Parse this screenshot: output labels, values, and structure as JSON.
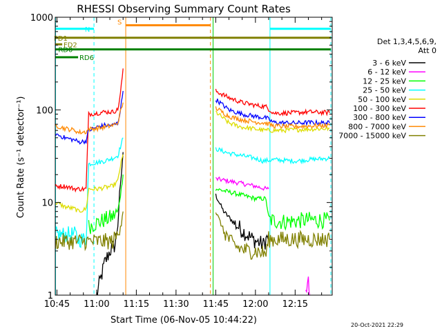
{
  "chart_data": {
    "type": "line",
    "title": "RHESSI Observing Summary Count Rates",
    "xlabel": "Start Time (06-Nov-05 10:44:22)",
    "ylabel": "Count Rate (s⁻¹ detector⁻¹)",
    "x_tick_labels": [
      "10:45",
      "11:00",
      "11:15",
      "11:30",
      "11:45",
      "12:00",
      "12:15"
    ],
    "x_tick_minutes": [
      45,
      60,
      75,
      90,
      105,
      120,
      135
    ],
    "xlim_minutes": [
      44.37,
      149
    ],
    "y_scale": "log",
    "ylim": [
      1,
      1000
    ],
    "y_tick_labels": [
      "1",
      "10",
      "100",
      "1000"
    ],
    "y_tick_values": [
      1,
      10,
      100,
      1000
    ],
    "legend_header": [
      "Det 1,3,4,5,6,9,",
      "Att 0"
    ],
    "legend_position": "right",
    "timestamp": "20-Oct-2021 22:29",
    "series": [
      {
        "name": "3 - 6 keV",
        "color": "#000000",
        "segments": [
          [
            [
              60,
              1.0
            ],
            [
              63,
              2.2
            ],
            [
              65,
              3.0
            ],
            [
              67,
              3.5
            ],
            [
              68,
              6
            ],
            [
              69,
              15
            ],
            [
              70,
              35
            ]
          ],
          [
            [
              105,
              12
            ],
            [
              108,
              8
            ],
            [
              112,
              6
            ],
            [
              115,
              5
            ],
            [
              119,
              4
            ],
            [
              123,
              3.5
            ],
            [
              125,
              4.5
            ]
          ]
        ]
      },
      {
        "name": "6 - 12 keV",
        "color": "#ff00ff",
        "segments": [
          [
            [
              105,
              18
            ],
            [
              110,
              17
            ],
            [
              115,
              16
            ],
            [
              120,
              15
            ],
            [
              124,
              14
            ],
            [
              125,
              14
            ]
          ],
          [
            [
              139,
              1.0
            ],
            [
              140,
              1.6
            ],
            [
              140.5,
              1.0
            ]
          ]
        ]
      },
      {
        "name": "12 - 25 keV",
        "color": "#00ff00",
        "segments": [
          [
            [
              57,
              5.5
            ],
            [
              60,
              6
            ],
            [
              63,
              6.5
            ],
            [
              66,
              7
            ],
            [
              68,
              8
            ],
            [
              69,
              12
            ],
            [
              70,
              20
            ]
          ],
          [
            [
              105,
              14
            ],
            [
              110,
              13
            ],
            [
              115,
              12
            ],
            [
              120,
              11
            ],
            [
              124,
              11
            ],
            [
              125,
              6.5
            ],
            [
              130,
              6.2
            ],
            [
              135,
              6.3
            ],
            [
              140,
              6.5
            ],
            [
              148,
              6.4
            ]
          ]
        ]
      },
      {
        "name": "25 - 50 keV",
        "color": "#00ffff",
        "segments": [
          [
            [
              44.5,
              4.5
            ],
            [
              48,
              4.5
            ],
            [
              52,
              4.5
            ],
            [
              53,
              4
            ],
            [
              56,
              4
            ],
            [
              57,
              26
            ],
            [
              60,
              27
            ],
            [
              63,
              28
            ],
            [
              66,
              30
            ],
            [
              68,
              32
            ],
            [
              69,
              40
            ],
            [
              70,
              50
            ]
          ],
          [
            [
              105,
              38
            ],
            [
              110,
              34
            ],
            [
              115,
              32
            ],
            [
              120,
              30
            ],
            [
              123,
              28
            ],
            [
              127,
              29
            ],
            [
              135,
              28
            ],
            [
              140,
              29
            ],
            [
              148,
              30
            ]
          ]
        ]
      },
      {
        "name": "50 - 100 keV",
        "color": "#dddd00",
        "segments": [
          [
            [
              44.5,
              10
            ],
            [
              48,
              9
            ],
            [
              52,
              8.5
            ],
            [
              53,
              8
            ],
            [
              56,
              8.5
            ],
            [
              57,
              14
            ],
            [
              60,
              14
            ],
            [
              63,
              14.5
            ],
            [
              66,
              15
            ],
            [
              68,
              17
            ],
            [
              69,
              25
            ],
            [
              70,
              33
            ]
          ],
          [
            [
              105,
              95
            ],
            [
              110,
              72
            ],
            [
              115,
              65
            ],
            [
              120,
              62
            ],
            [
              124,
              60
            ],
            [
              130,
              60
            ],
            [
              135,
              61
            ],
            [
              140,
              62
            ],
            [
              148,
              63
            ]
          ]
        ]
      },
      {
        "name": "100 - 300 keV",
        "color": "#ff0000",
        "segments": [
          [
            [
              44.5,
              15
            ],
            [
              48,
              15
            ],
            [
              52,
              14
            ],
            [
              53,
              14
            ],
            [
              56,
              14
            ],
            [
              57,
              90
            ],
            [
              60,
              92
            ],
            [
              63,
              95
            ],
            [
              66,
              95
            ],
            [
              68,
              100
            ],
            [
              69,
              150
            ],
            [
              70,
              280
            ]
          ],
          [
            [
              105,
              160
            ],
            [
              110,
              135
            ],
            [
              115,
              120
            ],
            [
              120,
              112
            ],
            [
              124,
              108
            ],
            [
              127,
              92
            ],
            [
              135,
              93
            ],
            [
              140,
              95
            ],
            [
              148,
              93
            ]
          ]
        ]
      },
      {
        "name": "300 - 800 keV",
        "color": "#0000ff",
        "segments": [
          [
            [
              44.5,
              55
            ],
            [
              48,
              50
            ],
            [
              52,
              47
            ],
            [
              53,
              45
            ],
            [
              56,
              46
            ],
            [
              57,
              60
            ],
            [
              60,
              65
            ],
            [
              63,
              68
            ],
            [
              66,
              68
            ],
            [
              68,
              72
            ],
            [
              69,
              100
            ],
            [
              70,
              160
            ]
          ],
          [
            [
              105,
              130
            ],
            [
              110,
              100
            ],
            [
              115,
              90
            ],
            [
              120,
              85
            ],
            [
              124,
              82
            ],
            [
              127,
              73
            ],
            [
              135,
              72
            ],
            [
              140,
              73
            ],
            [
              148,
              72
            ]
          ]
        ]
      },
      {
        "name": "800 - 7000 keV",
        "color": "#ff8800",
        "segments": [
          [
            [
              44.5,
              68
            ],
            [
              48,
              63
            ],
            [
              52,
              60
            ],
            [
              53,
              57
            ],
            [
              56,
              58
            ],
            [
              57,
              62
            ],
            [
              60,
              63
            ],
            [
              63,
              65
            ],
            [
              66,
              68
            ],
            [
              68,
              72
            ],
            [
              69,
              95
            ],
            [
              70,
              120
            ]
          ],
          [
            [
              105,
              105
            ],
            [
              110,
              85
            ],
            [
              115,
              78
            ],
            [
              120,
              74
            ],
            [
              124,
              72
            ],
            [
              127,
              67
            ],
            [
              135,
              66
            ],
            [
              140,
              67
            ],
            [
              148,
              68
            ]
          ]
        ]
      },
      {
        "name": "7000 - 15000 keV",
        "color": "#808000",
        "segments": [
          [
            [
              44.5,
              3.8
            ],
            [
              48,
              3.8
            ],
            [
              52,
              3.8
            ],
            [
              53,
              3.8
            ],
            [
              56,
              3.8
            ],
            [
              57,
              3.8
            ],
            [
              60,
              3.8
            ],
            [
              63,
              3.8
            ],
            [
              66,
              3.8
            ],
            [
              68,
              4.5
            ],
            [
              69,
              6
            ],
            [
              70,
              8
            ]
          ],
          [
            [
              105,
              8
            ],
            [
              108,
              5
            ],
            [
              111,
              3.6
            ],
            [
              114,
              3.2
            ],
            [
              117,
              3
            ],
            [
              120,
              3
            ],
            [
              124,
              2.8
            ],
            [
              125,
              4
            ],
            [
              130,
              4
            ],
            [
              135,
              4
            ],
            [
              140,
              4
            ],
            [
              148,
              4
            ]
          ]
        ]
      }
    ],
    "flags": [
      {
        "label": "N",
        "color": "#00ffff",
        "y": 750,
        "segments": [
          [
            44.37,
            59
          ],
          [
            125.5,
            148.5
          ]
        ]
      },
      {
        "label": "S",
        "color": "#ff8800",
        "y": 820,
        "segments": [
          [
            71,
            103
          ]
        ]
      },
      {
        "label": "FD1",
        "color": "#808000",
        "y": 600,
        "segments": [
          [
            44.37,
            148.5
          ]
        ]
      },
      {
        "label": "FD2",
        "color": "#808000",
        "y": 510,
        "segments": [
          [
            44.37,
            47
          ]
        ]
      },
      {
        "label": "RD0",
        "color": "#008000",
        "y": 450,
        "segments": [
          [
            44.37,
            148.5
          ]
        ]
      },
      {
        "label": "RD6",
        "color": "#008000",
        "y": 370,
        "segments": [
          [
            44.37,
            53
          ]
        ]
      }
    ],
    "vlines": [
      {
        "x": 44.5,
        "color": "#00ffff",
        "dash": false
      },
      {
        "x": 59,
        "color": "#00ffff",
        "dash": true
      },
      {
        "x": 71,
        "color": "#ff8800",
        "dash": false
      },
      {
        "x": 103,
        "color": "#ff8800",
        "dash": true
      },
      {
        "x": 104,
        "color": "#00cc00",
        "dash": false
      },
      {
        "x": 125.5,
        "color": "#00ffff",
        "dash": false
      },
      {
        "x": 148.5,
        "color": "#00ffff",
        "dash": true
      }
    ]
  }
}
